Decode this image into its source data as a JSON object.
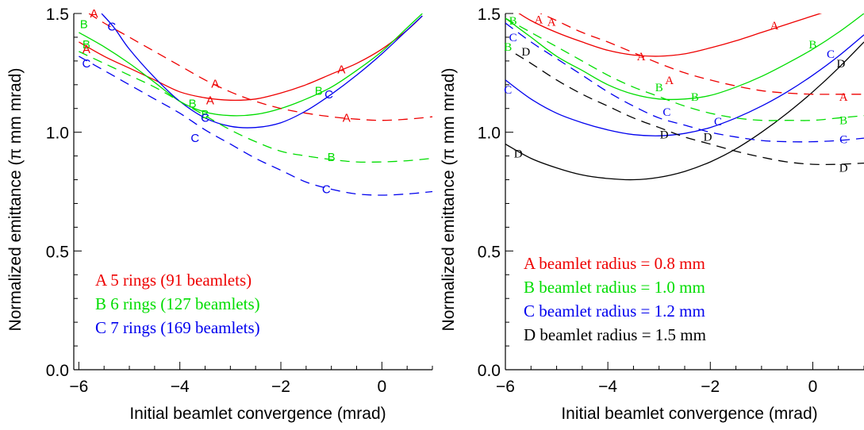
{
  "chart_data": [
    {
      "type": "line",
      "xlabel": "Initial beamlet convergence (mrad)",
      "ylabel": "Normalized emittance (π mm mrad)",
      "xlim": [
        -6.1,
        1.0
      ],
      "ylim": [
        0.0,
        1.5
      ],
      "xticks": [
        "−6",
        "−4",
        "−2",
        "0"
      ],
      "yticks": [
        "0.0",
        "0.5",
        "1.0",
        "1.5"
      ],
      "grid": false,
      "legend_placement": "lower-left",
      "label_style": "sans",
      "series": [
        {
          "name": "A 5 rings (91 beamlets)",
          "marker_label": "A",
          "color": "#ee0000",
          "dash": "solid",
          "x": [
            -6.0,
            -5.5,
            -5.0,
            -4.5,
            -4.0,
            -3.5,
            -3.0,
            -2.5,
            -2.0,
            -1.5,
            -1.0,
            -0.5,
            0.0,
            0.5,
            0.8
          ],
          "y": [
            1.38,
            1.32,
            1.27,
            1.22,
            1.17,
            1.145,
            1.135,
            1.14,
            1.165,
            1.2,
            1.245,
            1.29,
            1.35,
            1.43,
            1.49
          ]
        },
        {
          "name": "B 6 rings (127 beamlets)",
          "marker_label": "B",
          "color": "#00dd00",
          "dash": "solid",
          "x": [
            -6.0,
            -5.5,
            -5.0,
            -4.5,
            -4.0,
            -3.5,
            -3.0,
            -2.5,
            -2.0,
            -1.5,
            -1.0,
            -0.5,
            0.0,
            0.5,
            0.8
          ],
          "y": [
            1.42,
            1.36,
            1.29,
            1.21,
            1.13,
            1.085,
            1.07,
            1.075,
            1.1,
            1.14,
            1.19,
            1.26,
            1.34,
            1.44,
            1.5
          ]
        },
        {
          "name": "C 7 rings (169 beamlets)",
          "marker_label": "C",
          "color": "#0000ee",
          "dash": "solid",
          "x": [
            -5.55,
            -5.3,
            -5.0,
            -4.5,
            -4.0,
            -3.5,
            -3.0,
            -2.5,
            -2.0,
            -1.5,
            -1.0,
            -0.5,
            0.0,
            0.5,
            0.8
          ],
          "y": [
            1.5,
            1.44,
            1.35,
            1.23,
            1.13,
            1.06,
            1.025,
            1.02,
            1.04,
            1.09,
            1.16,
            1.24,
            1.33,
            1.43,
            1.49
          ]
        },
        {
          "name": "",
          "marker_label": "A",
          "color": "#ee0000",
          "dash": "dashed",
          "x": [
            -5.8,
            -5.5,
            -5.0,
            -4.5,
            -4.0,
            -3.5,
            -3.0,
            -2.5,
            -2.0,
            -1.5,
            -1.0,
            -0.5,
            0.0,
            0.5,
            1.0
          ],
          "y": [
            1.5,
            1.46,
            1.4,
            1.34,
            1.28,
            1.22,
            1.17,
            1.13,
            1.1,
            1.08,
            1.065,
            1.055,
            1.05,
            1.055,
            1.065
          ]
        },
        {
          "name": "",
          "marker_label": "B",
          "color": "#00dd00",
          "dash": "dashed",
          "x": [
            -6.0,
            -5.5,
            -5.0,
            -4.5,
            -4.0,
            -3.5,
            -3.0,
            -2.5,
            -2.0,
            -1.5,
            -1.0,
            -0.5,
            0.0,
            0.5,
            1.0
          ],
          "y": [
            1.34,
            1.29,
            1.24,
            1.19,
            1.13,
            1.07,
            1.01,
            0.96,
            0.92,
            0.9,
            0.885,
            0.875,
            0.875,
            0.88,
            0.89
          ]
        },
        {
          "name": "",
          "marker_label": "C",
          "color": "#0000ee",
          "dash": "dashed",
          "x": [
            -6.0,
            -5.5,
            -5.0,
            -4.5,
            -4.0,
            -3.5,
            -3.0,
            -2.5,
            -2.0,
            -1.5,
            -1.0,
            -0.5,
            0.0,
            0.5,
            1.0
          ],
          "y": [
            1.32,
            1.26,
            1.2,
            1.14,
            1.08,
            1.01,
            0.95,
            0.89,
            0.84,
            0.79,
            0.76,
            0.74,
            0.735,
            0.74,
            0.75
          ]
        }
      ],
      "curve_labels": [
        {
          "t": "A",
          "c": "#ee0000",
          "x": -5.7,
          "y": 1.5
        },
        {
          "t": "B",
          "c": "#00dd00",
          "x": -5.9,
          "y": 1.455
        },
        {
          "t": "C",
          "c": "#0000ee",
          "x": -5.35,
          "y": 1.445
        },
        {
          "t": "B",
          "c": "#00dd00",
          "x": -5.85,
          "y": 1.37
        },
        {
          "t": "A",
          "c": "#ee0000",
          "x": -5.85,
          "y": 1.35
        },
        {
          "t": "C",
          "c": "#0000ee",
          "x": -5.85,
          "y": 1.29
        },
        {
          "t": "A",
          "c": "#ee0000",
          "x": -3.3,
          "y": 1.205
        },
        {
          "t": "A",
          "c": "#ee0000",
          "x": -3.4,
          "y": 1.135
        },
        {
          "t": "B",
          "c": "#00dd00",
          "x": -3.75,
          "y": 1.12
        },
        {
          "t": "B",
          "c": "#00dd00",
          "x": -3.5,
          "y": 1.075
        },
        {
          "t": "C",
          "c": "#0000ee",
          "x": -3.5,
          "y": 1.06
        },
        {
          "t": "C",
          "c": "#0000ee",
          "x": -3.7,
          "y": 0.975
        },
        {
          "t": "A",
          "c": "#ee0000",
          "x": -0.8,
          "y": 1.265
        },
        {
          "t": "B",
          "c": "#00dd00",
          "x": -1.25,
          "y": 1.175
        },
        {
          "t": "C",
          "c": "#0000ee",
          "x": -1.05,
          "y": 1.16
        },
        {
          "t": "A",
          "c": "#ee0000",
          "x": -0.7,
          "y": 1.06
        },
        {
          "t": "B",
          "c": "#00dd00",
          "x": -1.0,
          "y": 0.895
        },
        {
          "t": "C",
          "c": "#0000ee",
          "x": -1.1,
          "y": 0.76
        }
      ]
    },
    {
      "type": "line",
      "xlabel": "Initial beamlet convergence (mrad)",
      "ylabel": "Normalized emittance (π mm mrad)",
      "xlim": [
        -6.0,
        1.0
      ],
      "ylim": [
        0.0,
        1.5
      ],
      "xticks": [
        "−6",
        "−4",
        "−2",
        "0"
      ],
      "yticks": [
        "0.0",
        "0.5",
        "1.0",
        "1.5"
      ],
      "grid": false,
      "legend_placement": "lower-left",
      "label_style": "serif",
      "series": [
        {
          "name": "A beamlet radius = 0.8 mm",
          "marker_label": "A",
          "color": "#ee0000",
          "dash": "solid",
          "x": [
            -5.8,
            -5.5,
            -5.0,
            -4.5,
            -4.0,
            -3.5,
            -3.0,
            -2.5,
            -2.0,
            -1.5,
            -1.0,
            -0.5,
            0.0,
            0.3
          ],
          "y": [
            1.51,
            1.47,
            1.42,
            1.38,
            1.345,
            1.325,
            1.32,
            1.33,
            1.355,
            1.385,
            1.42,
            1.455,
            1.49,
            1.51
          ]
        },
        {
          "name": "B beamlet radius = 1.0 mm",
          "marker_label": "B",
          "color": "#00dd00",
          "dash": "solid",
          "x": [
            -6.0,
            -5.5,
            -5.0,
            -4.5,
            -4.0,
            -3.5,
            -3.0,
            -2.5,
            -2.0,
            -1.5,
            -1.0,
            -0.5,
            0.0,
            0.5,
            1.0
          ],
          "y": [
            1.48,
            1.4,
            1.32,
            1.26,
            1.2,
            1.16,
            1.14,
            1.14,
            1.155,
            1.19,
            1.235,
            1.29,
            1.35,
            1.42,
            1.5
          ]
        },
        {
          "name": "C beamlet radius = 1.2 mm",
          "marker_label": "C",
          "color": "#0000ee",
          "dash": "solid",
          "x": [
            -6.0,
            -5.5,
            -5.0,
            -4.5,
            -4.0,
            -3.5,
            -3.0,
            -2.5,
            -2.0,
            -1.5,
            -1.0,
            -0.5,
            0.0,
            0.5,
            1.0
          ],
          "y": [
            1.22,
            1.14,
            1.08,
            1.04,
            1.01,
            0.99,
            0.985,
            0.995,
            1.02,
            1.06,
            1.11,
            1.17,
            1.24,
            1.32,
            1.41
          ]
        },
        {
          "name": "D beamlet radius = 1.5 mm",
          "marker_label": "D",
          "color": "#000000",
          "dash": "solid",
          "x": [
            -6.0,
            -5.5,
            -5.0,
            -4.5,
            -4.0,
            -3.5,
            -3.0,
            -2.5,
            -2.0,
            -1.5,
            -1.0,
            -0.5,
            0.0,
            0.5,
            1.0
          ],
          "y": [
            0.95,
            0.89,
            0.85,
            0.82,
            0.805,
            0.8,
            0.81,
            0.835,
            0.875,
            0.93,
            1.0,
            1.08,
            1.17,
            1.27,
            1.38
          ]
        },
        {
          "name": "",
          "marker_label": "A",
          "color": "#ee0000",
          "dash": "dashed",
          "x": [
            -6.0,
            -5.5,
            -5.0,
            -4.5,
            -4.0,
            -3.5,
            -3.0,
            -2.5,
            -2.0,
            -1.5,
            -1.0,
            -0.5,
            0.0,
            0.5,
            1.0
          ],
          "y": [
            1.58,
            1.52,
            1.47,
            1.42,
            1.38,
            1.335,
            1.29,
            1.25,
            1.22,
            1.195,
            1.175,
            1.165,
            1.16,
            1.16,
            1.16
          ]
        },
        {
          "name": "",
          "marker_label": "B",
          "color": "#00dd00",
          "dash": "dashed",
          "x": [
            -6.0,
            -5.5,
            -5.0,
            -4.5,
            -4.0,
            -3.5,
            -3.0,
            -2.5,
            -2.0,
            -1.5,
            -1.0,
            -0.5,
            0.0,
            0.5,
            1.0
          ],
          "y": [
            1.48,
            1.42,
            1.36,
            1.3,
            1.24,
            1.19,
            1.15,
            1.11,
            1.08,
            1.06,
            1.05,
            1.05,
            1.05,
            1.06,
            1.07
          ]
        },
        {
          "name": "",
          "marker_label": "C",
          "color": "#0000ee",
          "dash": "dashed",
          "x": [
            -6.0,
            -5.5,
            -5.0,
            -4.5,
            -4.0,
            -3.5,
            -3.0,
            -2.5,
            -2.0,
            -1.5,
            -1.0,
            -0.5,
            0.0,
            0.5,
            1.0
          ],
          "y": [
            1.46,
            1.38,
            1.31,
            1.24,
            1.17,
            1.11,
            1.06,
            1.03,
            1.0,
            0.98,
            0.965,
            0.96,
            0.96,
            0.965,
            0.975
          ]
        },
        {
          "name": "",
          "marker_label": "D",
          "color": "#000000",
          "dash": "dashed",
          "x": [
            -5.8,
            -5.5,
            -5.0,
            -4.5,
            -4.0,
            -3.5,
            -3.0,
            -2.5,
            -2.0,
            -1.5,
            -1.0,
            -0.5,
            0.0,
            0.5,
            1.0
          ],
          "y": [
            1.33,
            1.29,
            1.22,
            1.16,
            1.11,
            1.06,
            1.02,
            0.98,
            0.95,
            0.92,
            0.895,
            0.875,
            0.865,
            0.865,
            0.87
          ]
        }
      ],
      "curve_labels": [
        {
          "t": "A",
          "c": "#ee0000",
          "x": -5.35,
          "y": 1.475
        },
        {
          "t": "A",
          "c": "#ee0000",
          "x": -5.1,
          "y": 1.465
        },
        {
          "t": "A",
          "c": "#ee0000",
          "x": -0.75,
          "y": 1.45
        },
        {
          "t": "A",
          "c": "#ee0000",
          "x": -3.35,
          "y": 1.32
        },
        {
          "t": "A",
          "c": "#ee0000",
          "x": -2.8,
          "y": 1.22
        },
        {
          "t": "A",
          "c": "#ee0000",
          "x": 0.6,
          "y": 1.15
        },
        {
          "t": "B",
          "c": "#00dd00",
          "x": -5.85,
          "y": 1.47
        },
        {
          "t": "B",
          "c": "#00dd00",
          "x": -5.95,
          "y": 1.36
        },
        {
          "t": "B",
          "c": "#00dd00",
          "x": 0.0,
          "y": 1.37
        },
        {
          "t": "B",
          "c": "#00dd00",
          "x": -3.0,
          "y": 1.19
        },
        {
          "t": "B",
          "c": "#00dd00",
          "x": -2.3,
          "y": 1.15
        },
        {
          "t": "B",
          "c": "#00dd00",
          "x": 0.6,
          "y": 1.05
        },
        {
          "t": "C",
          "c": "#0000ee",
          "x": -5.85,
          "y": 1.4
        },
        {
          "t": "C",
          "c": "#0000ee",
          "x": -5.95,
          "y": 1.18
        },
        {
          "t": "C",
          "c": "#0000ee",
          "x": 0.35,
          "y": 1.33
        },
        {
          "t": "C",
          "c": "#0000ee",
          "x": -2.85,
          "y": 1.085
        },
        {
          "t": "C",
          "c": "#0000ee",
          "x": -1.85,
          "y": 1.045
        },
        {
          "t": "C",
          "c": "#0000ee",
          "x": 0.6,
          "y": 0.97
        },
        {
          "t": "D",
          "c": "#000000",
          "x": -5.6,
          "y": 1.34
        },
        {
          "t": "D",
          "c": "#000000",
          "x": 0.55,
          "y": 1.29
        },
        {
          "t": "D",
          "c": "#000000",
          "x": -5.75,
          "y": 0.91
        },
        {
          "t": "D",
          "c": "#000000",
          "x": -2.9,
          "y": 0.99
        },
        {
          "t": "D",
          "c": "#000000",
          "x": -2.05,
          "y": 0.98
        },
        {
          "t": "D",
          "c": "#000000",
          "x": 0.6,
          "y": 0.85
        }
      ]
    }
  ]
}
